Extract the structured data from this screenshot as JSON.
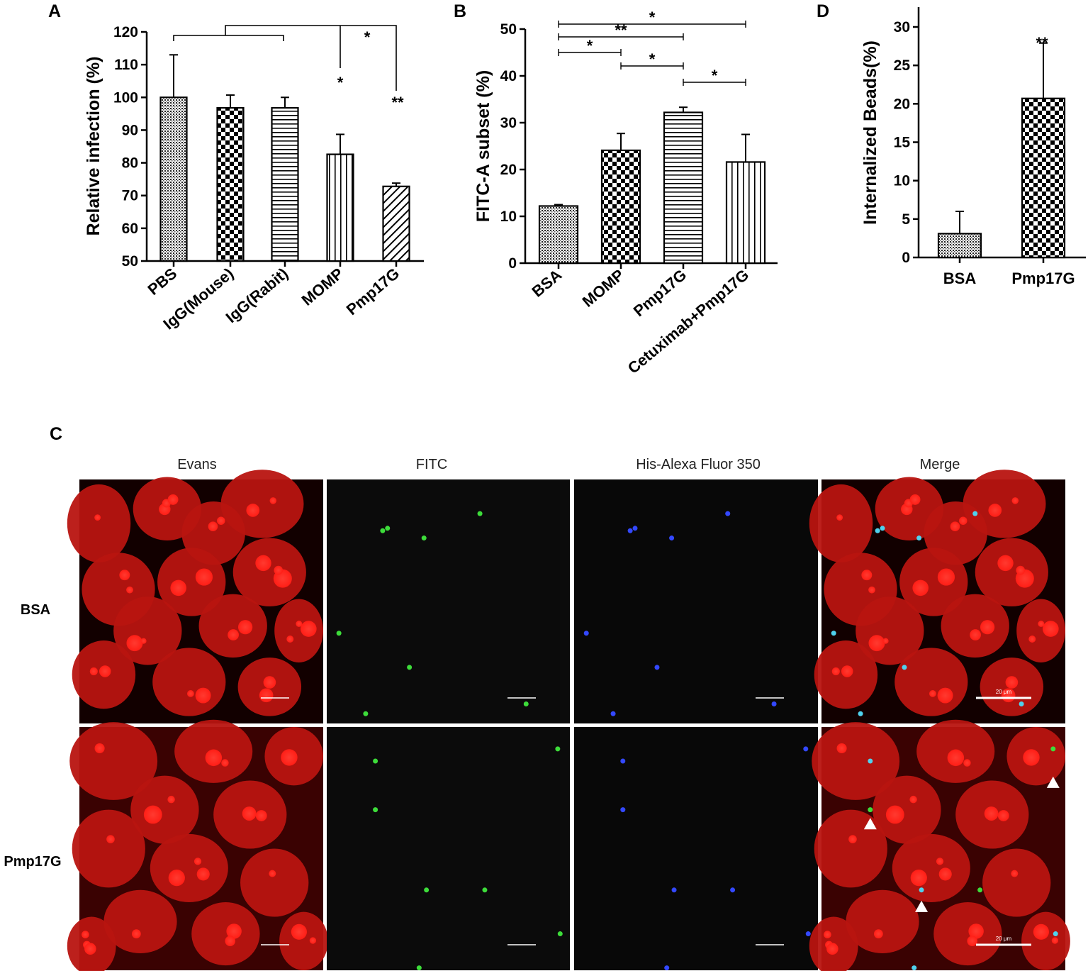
{
  "panels": {
    "A": "A",
    "B": "B",
    "C": "C",
    "D": "D"
  },
  "chart_data": [
    {
      "panel": "A",
      "type": "bar",
      "ylabel": "Relative infection (%)",
      "ylim": [
        50,
        120
      ],
      "yticks": [
        50,
        60,
        70,
        80,
        90,
        100,
        110,
        120
      ],
      "categories": [
        "PBS",
        "IgG(Mouse)",
        "IgG(Rabit)",
        "MOMP",
        "Pmp17G"
      ],
      "values": [
        100,
        96.8,
        96.8,
        82.6,
        72.8
      ],
      "errors": [
        13,
        3.9,
        3.2,
        6.1,
        1.0
      ],
      "patterns": [
        "dots",
        "checker",
        "hlines",
        "vlines",
        "diag"
      ],
      "significance": [
        {
          "label": "*",
          "marker": "MOMP"
        },
        {
          "label": "*",
          "marker": "top"
        },
        {
          "label": "**",
          "marker": "Pmp17G"
        }
      ]
    },
    {
      "panel": "B",
      "type": "bar",
      "ylabel": "FITC-A subset (%)",
      "ylim": [
        0,
        50
      ],
      "yticks": [
        0,
        10,
        20,
        30,
        40,
        50
      ],
      "categories": [
        "BSA",
        "MOMP",
        "Pmp17G",
        "Cetuximab+Pmp17G"
      ],
      "values": [
        12.2,
        24.1,
        32.2,
        21.6
      ],
      "errors": [
        0.3,
        3.6,
        1.1,
        5.9
      ],
      "patterns": [
        "dots",
        "checker",
        "hlines",
        "vlines"
      ],
      "significance": [
        {
          "label": "*",
          "from": 0,
          "to": 3,
          "y": 51.2
        },
        {
          "label": "**",
          "from": 0,
          "to": 2,
          "y": 48.0
        },
        {
          "label": "*",
          "from": 0,
          "to": 1,
          "y": 45.0
        },
        {
          "label": "*",
          "from": 1,
          "to": 2,
          "y": 42.0
        },
        {
          "label": "*",
          "from": 2,
          "to": 3,
          "y": 38.5
        }
      ]
    },
    {
      "panel": "D",
      "type": "bar",
      "ylabel": "Internalized Beads(%)",
      "ylim": [
        0,
        30
      ],
      "yticks": [
        0,
        5,
        10,
        15,
        20,
        25,
        30
      ],
      "categories": [
        "BSA",
        "Pmp17G"
      ],
      "values": [
        3.1,
        20.7
      ],
      "errors": [
        2.9,
        7.2
      ],
      "patterns": [
        "dots",
        "checker"
      ],
      "significance": [
        {
          "label": "**",
          "marker": "Pmp17G"
        }
      ]
    }
  ],
  "microscopy": {
    "columns": [
      "Evans",
      "FITC",
      "His-Alexa Fluor 350",
      "Merge"
    ],
    "rows": [
      "BSA",
      "Pmp17G"
    ],
    "scale_bar_label": "20 μm",
    "colors": {
      "evans": "#e0201c",
      "fitc": "#3ddc3a",
      "alexa": "#3348ff",
      "merge_dot": "#4fd2ee"
    }
  }
}
